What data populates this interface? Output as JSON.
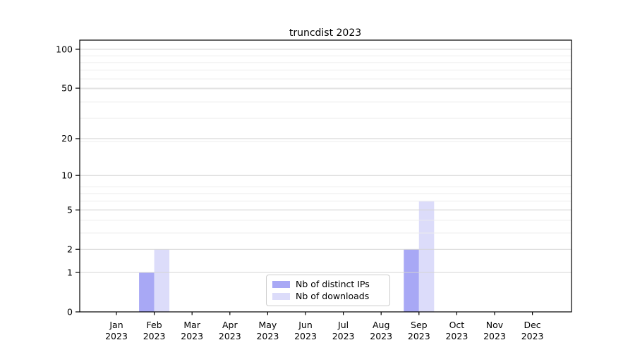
{
  "chart_data": {
    "type": "bar",
    "title": "truncdist 2023",
    "categories": [
      "Jan",
      "Feb",
      "Mar",
      "Apr",
      "May",
      "Jun",
      "Jul",
      "Aug",
      "Sep",
      "Oct",
      "Nov",
      "Dec"
    ],
    "category_year": "2023",
    "series": [
      {
        "name": "Nb of distinct IPs",
        "color": "#a8a8f5",
        "values": [
          0,
          1,
          0,
          0,
          0,
          0,
          0,
          0,
          2,
          0,
          0,
          0
        ]
      },
      {
        "name": "Nb of downloads",
        "color": "#dcdcfa",
        "values": [
          0,
          2,
          0,
          0,
          0,
          0,
          0,
          0,
          6,
          0,
          0,
          0
        ]
      }
    ],
    "y_scale": "log1p",
    "y_ticks": [
      0,
      1,
      2,
      5,
      10,
      20,
      50,
      100
    ],
    "y_minor_gridlines": [
      3,
      4,
      6,
      7,
      8,
      19,
      29,
      39,
      49,
      59,
      69,
      79,
      89
    ],
    "grid": true,
    "legend_position": "lower center",
    "colors": {
      "major_grid": "#d4d4d4",
      "minor_grid": "#ededed",
      "axis": "#000000",
      "text": "#000000",
      "background": "#ffffff"
    }
  }
}
